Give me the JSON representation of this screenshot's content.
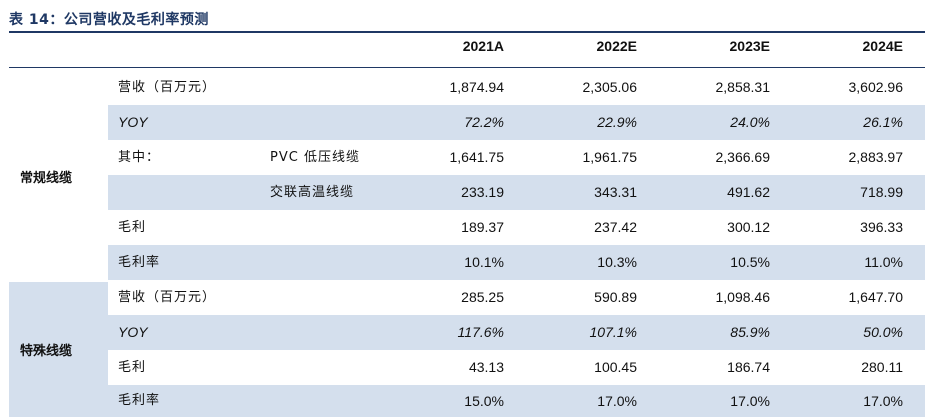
{
  "title": "表 14：公司营收及毛利率预测",
  "columns": [
    "2021A",
    "2022E",
    "2023E",
    "2024E"
  ],
  "groups": [
    {
      "name": "常规线缆",
      "rows": [
        {
          "label": "营收（百万元）",
          "sublabel": "",
          "values": [
            "1,874.94",
            "2,305.06",
            "2,858.31",
            "3,602.96"
          ],
          "italic": false,
          "shaded": false
        },
        {
          "label": "YOY",
          "sublabel": "",
          "values": [
            "72.2%",
            "22.9%",
            "24.0%",
            "26.1%"
          ],
          "italic": true,
          "shaded": true
        },
        {
          "label": "其中：",
          "sublabel": "PVC 低压线缆",
          "values": [
            "1,641.75",
            "1,961.75",
            "2,366.69",
            "2,883.97"
          ],
          "italic": false,
          "shaded": false
        },
        {
          "label": "",
          "sublabel": "交联高温线缆",
          "values": [
            "233.19",
            "343.31",
            "491.62",
            "718.99"
          ],
          "italic": false,
          "shaded": true
        },
        {
          "label": "毛利",
          "sublabel": "",
          "values": [
            "189.37",
            "237.42",
            "300.12",
            "396.33"
          ],
          "italic": false,
          "shaded": false
        },
        {
          "label": "毛利率",
          "sublabel": "",
          "values": [
            "10.1%",
            "10.3%",
            "10.5%",
            "11.0%"
          ],
          "italic": false,
          "shaded": true
        }
      ]
    },
    {
      "name": "特殊线缆",
      "rows": [
        {
          "label": "营收（百万元）",
          "sublabel": "",
          "values": [
            "285.25",
            "590.89",
            "1,098.46",
            "1,647.70"
          ],
          "italic": false,
          "shaded": false
        },
        {
          "label": "YOY",
          "sublabel": "",
          "values": [
            "117.6%",
            "107.1%",
            "85.9%",
            "50.0%"
          ],
          "italic": true,
          "shaded": true
        },
        {
          "label": "毛利",
          "sublabel": "",
          "values": [
            "43.13",
            "100.45",
            "186.74",
            "280.11"
          ],
          "italic": false,
          "shaded": false
        },
        {
          "label": "毛利率",
          "sublabel": "",
          "values": [
            "15.0%",
            "17.0%",
            "17.0%",
            "17.0%"
          ],
          "italic": false,
          "shaded": true
        }
      ]
    }
  ]
}
